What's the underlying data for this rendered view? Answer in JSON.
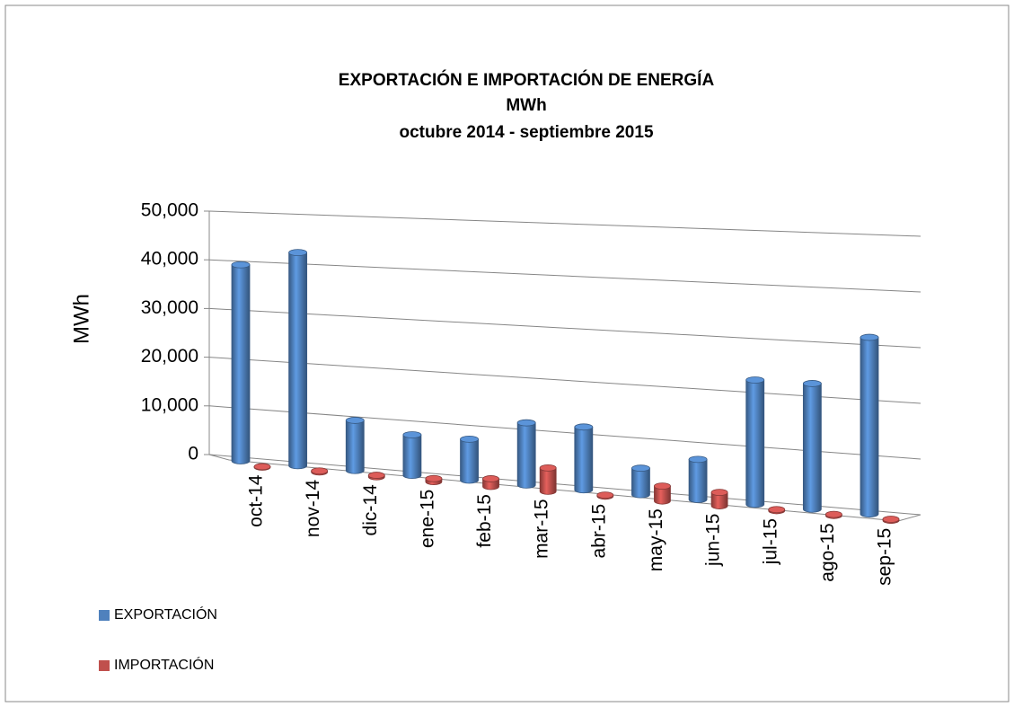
{
  "chart_data": {
    "type": "bar3d",
    "title": [
      "EXPORTACIÓN E IMPORTACIÓN DE ENERGÍA",
      "MWh",
      "octubre 2014  -  septiembre 2015"
    ],
    "y_label": "MWh",
    "categories": [
      "oct-14",
      "nov-14",
      "dic-14",
      "ene-15",
      "feb-15",
      "mar-15",
      "abr-15",
      "may-15",
      "jun-15",
      "jul-15",
      "ago-15",
      "sep-15"
    ],
    "series": [
      {
        "name": "EXPORTACIÓN",
        "color": "#4f81bd",
        "values": [
          40000,
          43000,
          10000,
          8000,
          8000,
          12000,
          12000,
          5000,
          7500,
          23000,
          23000,
          32000
        ]
      },
      {
        "name": "IMPORTACIÓN",
        "color": "#c0504d",
        "values": [
          100,
          200,
          300,
          600,
          1500,
          4500,
          200,
          2800,
          2500,
          200,
          200,
          200
        ]
      }
    ],
    "ylim": [
      0,
      50000
    ],
    "yticks": [
      0,
      {
        "value": 10000,
        "label": "10,000"
      },
      {
        "value": 20000,
        "label": "20,000"
      },
      {
        "value": 30000,
        "label": "30,000"
      },
      {
        "value": 40000,
        "label": "40,000"
      },
      {
        "value": 50000,
        "label": "50,000"
      }
    ],
    "grid": true,
    "legend": "bottom-left"
  }
}
